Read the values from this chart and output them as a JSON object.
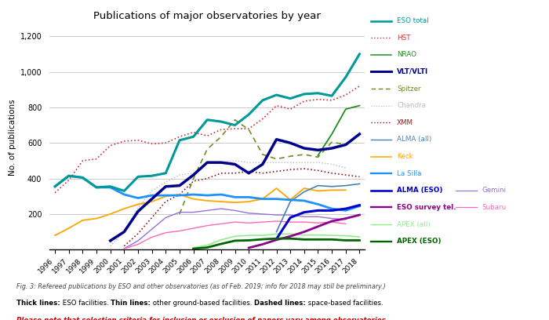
{
  "title": "Publications of major observatories by year",
  "years": [
    1996,
    1997,
    1998,
    1999,
    2000,
    2001,
    2002,
    2003,
    2004,
    2005,
    2006,
    2007,
    2008,
    2009,
    2010,
    2011,
    2012,
    2013,
    2014,
    2015,
    2016,
    2017,
    2018
  ],
  "ylabel": "No. of publications",
  "ylim": [
    0,
    1260
  ],
  "series": {
    "ESO total": {
      "color": "#009999",
      "linewidth": 2.2,
      "linestyle": "solid",
      "zorder": 10,
      "values": [
        355,
        415,
        405,
        350,
        355,
        330,
        410,
        415,
        430,
        615,
        635,
        730,
        720,
        700,
        760,
        840,
        870,
        850,
        875,
        880,
        865,
        970,
        1100
      ]
    },
    "HST": {
      "color": "#CC3333",
      "linewidth": 1.2,
      "linestyle": "dotted",
      "zorder": 5,
      "values": [
        320,
        390,
        500,
        510,
        585,
        610,
        615,
        595,
        600,
        635,
        660,
        640,
        675,
        680,
        680,
        735,
        810,
        790,
        835,
        845,
        840,
        870,
        920
      ]
    },
    "NRAO": {
      "color": "#228B22",
      "linewidth": 1.3,
      "linestyle": "solid",
      "zorder": 5,
      "values": [
        null,
        null,
        null,
        null,
        null,
        null,
        null,
        null,
        null,
        null,
        null,
        null,
        null,
        null,
        null,
        null,
        null,
        null,
        null,
        530,
        650,
        790,
        810
      ]
    },
    "VLT/VLTI": {
      "color": "#00008B",
      "linewidth": 2.5,
      "linestyle": "solid",
      "zorder": 9,
      "values": [
        null,
        null,
        null,
        null,
        50,
        100,
        215,
        285,
        355,
        360,
        420,
        490,
        490,
        480,
        430,
        480,
        620,
        600,
        570,
        560,
        570,
        590,
        650
      ]
    },
    "Spitzer": {
      "color": "#6B8E23",
      "linewidth": 1.2,
      "linestyle": "dashed",
      "zorder": 5,
      "values": [
        null,
        null,
        null,
        null,
        null,
        null,
        null,
        null,
        null,
        200,
        400,
        565,
        635,
        730,
        675,
        535,
        510,
        525,
        535,
        520,
        605,
        590,
        null
      ]
    },
    "Chandra": {
      "color": "#BBBBBB",
      "linewidth": 1.0,
      "linestyle": "dotted",
      "zorder": 4,
      "values": [
        null,
        null,
        null,
        null,
        20,
        100,
        235,
        330,
        380,
        420,
        430,
        495,
        490,
        500,
        490,
        490,
        490,
        490,
        490,
        490,
        480,
        460,
        null
      ]
    },
    "XMM": {
      "color": "#8B1A1A",
      "linewidth": 1.2,
      "linestyle": "dotted",
      "zorder": 5,
      "values": [
        null,
        null,
        null,
        null,
        null,
        20,
        90,
        180,
        270,
        310,
        385,
        400,
        430,
        430,
        440,
        430,
        440,
        450,
        455,
        445,
        430,
        420,
        410
      ]
    },
    "ALMA (all)": {
      "color": "#4682B4",
      "linewidth": 1.2,
      "linestyle": "solid",
      "zorder": 6,
      "values": [
        null,
        null,
        null,
        null,
        null,
        null,
        null,
        null,
        null,
        null,
        null,
        null,
        null,
        null,
        null,
        null,
        100,
        270,
        325,
        360,
        355,
        360,
        370
      ]
    },
    "Keck": {
      "color": "#FFA500",
      "linewidth": 1.3,
      "linestyle": "solid",
      "zorder": 5,
      "values": [
        80,
        120,
        165,
        175,
        200,
        230,
        255,
        270,
        300,
        310,
        285,
        275,
        270,
        265,
        270,
        285,
        345,
        280,
        345,
        330,
        335,
        335,
        null
      ]
    },
    "La Silla": {
      "color": "#1E90FF",
      "linewidth": 2.0,
      "linestyle": "solid",
      "zorder": 7,
      "values": [
        355,
        415,
        405,
        350,
        350,
        310,
        290,
        305,
        305,
        305,
        310,
        305,
        310,
        295,
        295,
        285,
        285,
        280,
        275,
        255,
        230,
        220,
        245
      ]
    },
    "ALMA (ESO)": {
      "color": "#0000CC",
      "linewidth": 2.2,
      "linestyle": "solid",
      "zorder": 8,
      "values": [
        null,
        null,
        null,
        null,
        null,
        null,
        null,
        null,
        null,
        null,
        null,
        null,
        null,
        null,
        null,
        null,
        60,
        180,
        210,
        220,
        220,
        230,
        250
      ]
    },
    "Gemini": {
      "color": "#9370DB",
      "linewidth": 1.0,
      "linestyle": "solid",
      "zorder": 5,
      "values": [
        null,
        null,
        null,
        null,
        null,
        5,
        50,
        115,
        180,
        210,
        210,
        220,
        230,
        220,
        205,
        200,
        195,
        195,
        185,
        185,
        175,
        170,
        null
      ]
    },
    "ESO survey tel.": {
      "color": "#8B008B",
      "linewidth": 2.0,
      "linestyle": "solid",
      "zorder": 8,
      "values": [
        null,
        null,
        null,
        null,
        null,
        null,
        null,
        null,
        null,
        null,
        null,
        null,
        null,
        null,
        10,
        30,
        55,
        75,
        100,
        130,
        160,
        175,
        195
      ]
    },
    "Subaru": {
      "color": "#FF69B4",
      "linewidth": 1.0,
      "linestyle": "solid",
      "zorder": 5,
      "values": [
        null,
        null,
        null,
        null,
        null,
        5,
        30,
        70,
        95,
        105,
        120,
        135,
        145,
        155,
        150,
        155,
        160,
        155,
        155,
        150,
        155,
        145,
        null
      ]
    },
    "APEX (all)": {
      "color": "#90EE90",
      "linewidth": 1.2,
      "linestyle": "solid",
      "zorder": 5,
      "values": [
        null,
        null,
        null,
        null,
        null,
        null,
        null,
        null,
        null,
        null,
        10,
        25,
        55,
        75,
        80,
        80,
        88,
        88,
        82,
        82,
        80,
        78,
        72
      ]
    },
    "APEX (ESO)": {
      "color": "#006400",
      "linewidth": 2.0,
      "linestyle": "solid",
      "zorder": 8,
      "values": [
        null,
        null,
        null,
        null,
        null,
        null,
        null,
        null,
        null,
        null,
        5,
        12,
        32,
        50,
        52,
        58,
        62,
        62,
        57,
        57,
        57,
        52,
        52
      ]
    }
  },
  "legend_items": [
    {
      "label": "ESO total",
      "color": "#009999",
      "ls": "-",
      "lw": 2.2,
      "bold": false
    },
    {
      "label": "HST",
      "color": "#CC3333",
      "ls": ":",
      "lw": 1.2,
      "bold": false
    },
    {
      "label": "NRAO",
      "color": "#228B22",
      "ls": "-",
      "lw": 1.3,
      "bold": false
    },
    {
      "label": "VLT/VLTI",
      "color": "#00008B",
      "ls": "-",
      "lw": 2.5,
      "bold": true
    },
    {
      "label": "Spitzer",
      "color": "#6B8E23",
      "ls": "--",
      "lw": 1.2,
      "bold": false
    },
    {
      "label": "Chandra",
      "color": "#BBBBBB",
      "ls": ":",
      "lw": 1.0,
      "bold": false
    },
    {
      "label": "XMM",
      "color": "#8B1A1A",
      "ls": ":",
      "lw": 1.2,
      "bold": false
    },
    {
      "label": "ALMA (all)",
      "color": "#4682B4",
      "ls": "-",
      "lw": 1.2,
      "bold": false
    },
    {
      "label": "Keck",
      "color": "#FFA500",
      "ls": "-",
      "lw": 1.3,
      "bold": false
    },
    {
      "label": "La Silla",
      "color": "#1E90FF",
      "ls": "-",
      "lw": 2.0,
      "bold": false
    },
    {
      "label": "ALMA (ESO)",
      "color": "#0000CC",
      "ls": "-",
      "lw": 2.2,
      "bold": true
    },
    {
      "label": "Gemini",
      "color": "#9370DB",
      "ls": "-",
      "lw": 1.0,
      "bold": false
    },
    {
      "label": "ESO survey tel.",
      "color": "#8B008B",
      "ls": "-",
      "lw": 2.0,
      "bold": true
    },
    {
      "label": "Subaru",
      "color": "#FF69B4",
      "ls": "-",
      "lw": 1.0,
      "bold": false
    },
    {
      "label": "APEX (all)",
      "color": "#90EE90",
      "ls": "-",
      "lw": 1.2,
      "bold": false
    },
    {
      "label": "APEX (ESO)",
      "color": "#006400",
      "ls": "-",
      "lw": 2.0,
      "bold": true
    }
  ],
  "caption1": "Fig. 3: Refereed publications by ESO and other observatories (as of Feb. 2019; info for 2018 may still be preliminary.)",
  "caption2": [
    {
      "text": "Thick lines:",
      "bold": true,
      "italic": false,
      "color": "#000000"
    },
    {
      "text": " ESO facilities. ",
      "bold": false,
      "italic": false,
      "color": "#000000"
    },
    {
      "text": "Thin lines:",
      "bold": true,
      "italic": false,
      "color": "#000000"
    },
    {
      "text": " other ground-based facilities. ",
      "bold": false,
      "italic": false,
      "color": "#000000"
    },
    {
      "text": "Dashed lines:",
      "bold": true,
      "italic": false,
      "color": "#000000"
    },
    {
      "text": " space-based facilities.",
      "bold": false,
      "italic": false,
      "color": "#000000"
    }
  ],
  "caption3": "Please note that selection criteria for inclusion or exclusion of papers vary among observatories.",
  "background_color": "#FFFFFF",
  "grid_color": "#CCCCCC"
}
